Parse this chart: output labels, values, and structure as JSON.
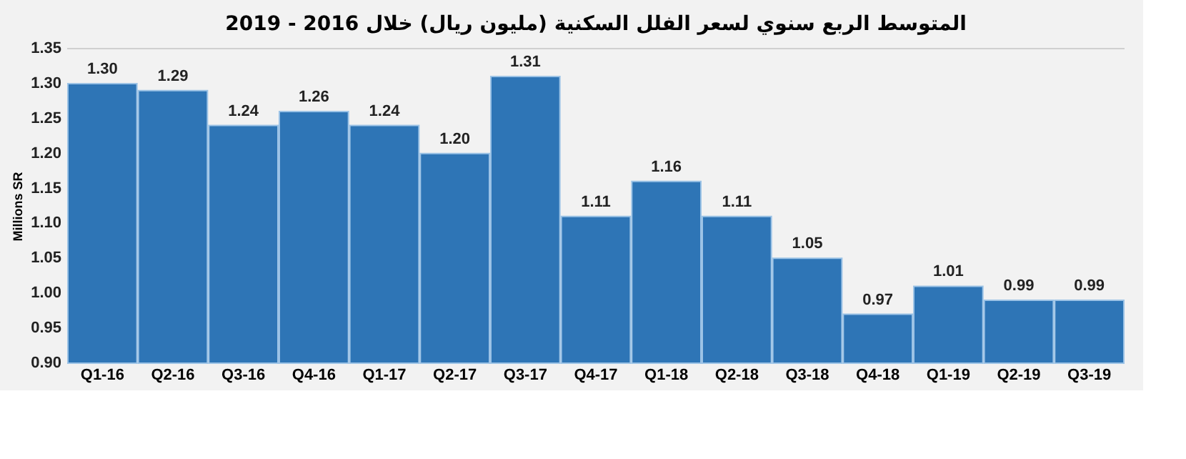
{
  "chart_data": {
    "type": "bar",
    "title": "المتوسط الربع سنوي لسعر الفلل السكنية (مليون ريال) خلال 2016 - 2019",
    "ylabel": "Millions SR",
    "categories": [
      "Q1-16",
      "Q2-16",
      "Q3-16",
      "Q4-16",
      "Q1-17",
      "Q2-17",
      "Q3-17",
      "Q4-17",
      "Q1-18",
      "Q2-18",
      "Q3-18",
      "Q4-18",
      "Q1-19",
      "Q2-19",
      "Q3-19"
    ],
    "values": [
      1.3,
      1.29,
      1.24,
      1.26,
      1.24,
      1.2,
      1.31,
      1.11,
      1.16,
      1.11,
      1.05,
      0.97,
      1.01,
      0.99,
      0.99
    ],
    "value_labels": [
      "1.30",
      "1.29",
      "1.24",
      "1.26",
      "1.24",
      "1.20",
      "1.31",
      "1.11",
      "1.16",
      "1.11",
      "1.05",
      "0.97",
      "1.01",
      "0.99",
      "0.99"
    ],
    "color": "#2e75b6",
    "ylim": [
      0.9,
      1.35
    ],
    "yticks": [
      {
        "value": 0.9,
        "label": "0.90"
      },
      {
        "value": 0.95,
        "label": "0.95"
      },
      {
        "value": 1.0,
        "label": "1.00"
      },
      {
        "value": 1.05,
        "label": "1.05"
      },
      {
        "value": 1.1,
        "label": "1.10"
      },
      {
        "value": 1.15,
        "label": "1.15"
      },
      {
        "value": 1.2,
        "label": "1.20"
      },
      {
        "value": 1.25,
        "label": "1.25"
      },
      {
        "value": 1.3,
        "label": "1.30"
      },
      {
        "value": 1.35,
        "label": "1.35"
      }
    ],
    "grid": false
  }
}
